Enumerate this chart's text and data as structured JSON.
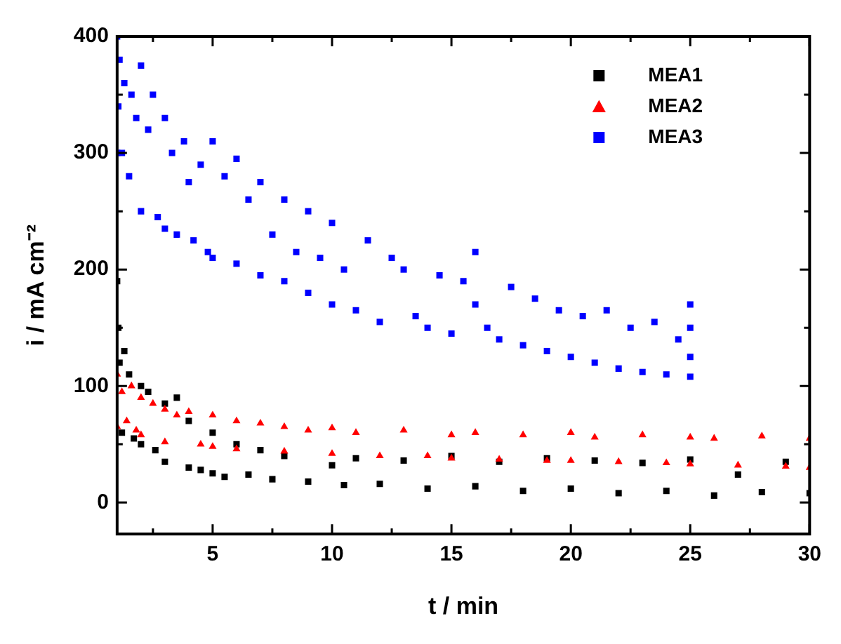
{
  "chart_data": {
    "type": "scatter",
    "xlabel": "t / min",
    "ylabel": "i / mA cm⁻²",
    "xlim": [
      1,
      30
    ],
    "xticks": [
      {
        "value": 2.5,
        "label": null
      },
      5,
      {
        "value": 7.5,
        "label": null
      },
      10,
      {
        "value": 12.5,
        "label": null
      },
      15,
      {
        "value": 17.5,
        "label": null
      },
      20,
      {
        "value": 22.5,
        "label": null
      },
      25,
      {
        "value": 27.5,
        "label": null
      },
      30
    ],
    "ylim": [
      -27,
      400
    ],
    "yticks": [
      0,
      {
        "value": 50,
        "label": null
      },
      100,
      {
        "value": 150,
        "label": null
      },
      200,
      {
        "value": 250,
        "label": null
      },
      300,
      {
        "value": 350,
        "label": null
      },
      400
    ],
    "grid": false,
    "legend": "top right",
    "series": [
      {
        "name": "MEA1",
        "color": "#000000",
        "marker": "square",
        "x": [
          1.0,
          1.05,
          1.1,
          1.2,
          1.3,
          1.5,
          1.7,
          2.0,
          2.0,
          2.3,
          2.6,
          3.0,
          3.0,
          3.5,
          4.0,
          4.0,
          4.5,
          5.0,
          5.0,
          5.5,
          6.0,
          6.5,
          7.0,
          7.5,
          8.0,
          9.0,
          10.0,
          10.5,
          11.0,
          12.0,
          13.0,
          14.0,
          15.0,
          16.0,
          17.0,
          18.0,
          19.0,
          20.0,
          21.0,
          22.0,
          23.0,
          24.0,
          25.0,
          26.0,
          27.0,
          28.0,
          29.0,
          30.0
        ],
        "values": [
          190,
          150,
          120,
          60,
          130,
          110,
          55,
          100,
          50,
          95,
          45,
          85,
          35,
          90,
          70,
          30,
          28,
          60,
          25,
          22,
          50,
          24,
          45,
          20,
          40,
          18,
          32,
          15,
          38,
          16,
          36,
          12,
          40,
          14,
          35,
          10,
          38,
          12,
          36,
          8,
          34,
          10,
          37,
          6,
          24,
          9,
          35,
          8
        ]
      },
      {
        "name": "MEA2",
        "color": "#ff0000",
        "marker": "triangle",
        "x": [
          1.0,
          1.0,
          1.2,
          1.4,
          1.6,
          1.8,
          2.0,
          2.0,
          2.5,
          3.0,
          3.0,
          3.5,
          4.0,
          4.5,
          5.0,
          5.0,
          6.0,
          6.0,
          7.0,
          8.0,
          8.0,
          9.0,
          10.0,
          10.0,
          11.0,
          12.0,
          13.0,
          14.0,
          15.0,
          15.0,
          16.0,
          17.0,
          18.0,
          19.0,
          20.0,
          20.0,
          21.0,
          22.0,
          23.0,
          24.0,
          25.0,
          25.0,
          26.0,
          27.0,
          28.0,
          29.0,
          30.0,
          30.0
        ],
        "values": [
          110,
          65,
          95,
          70,
          100,
          62,
          90,
          58,
          85,
          80,
          52,
          75,
          78,
          50,
          75,
          48,
          70,
          46,
          68,
          65,
          44,
          62,
          64,
          42,
          60,
          40,
          62,
          40,
          58,
          38,
          60,
          37,
          58,
          36,
          60,
          36,
          56,
          35,
          58,
          34,
          56,
          33,
          55,
          32,
          57,
          31,
          55,
          30
        ]
      },
      {
        "name": "MEA3",
        "color": "#0000ff",
        "marker": "square",
        "x": [
          1.0,
          1.0,
          1.05,
          1.1,
          1.2,
          1.3,
          1.5,
          1.6,
          1.8,
          2.0,
          2.0,
          2.3,
          2.5,
          2.7,
          3.0,
          3.0,
          3.3,
          3.5,
          3.8,
          4.0,
          4.2,
          4.5,
          4.8,
          5.0,
          5.0,
          5.5,
          6.0,
          6.0,
          6.5,
          7.0,
          7.0,
          7.5,
          8.0,
          8.0,
          8.5,
          9.0,
          9.0,
          9.5,
          10.0,
          10.0,
          10.5,
          11.0,
          11.5,
          12.0,
          12.5,
          13.0,
          13.5,
          14.0,
          14.5,
          15.0,
          15.5,
          16.0,
          16.0,
          16.5,
          17.0,
          17.5,
          18.0,
          18.5,
          19.0,
          19.5,
          20.0,
          20.5,
          21.0,
          21.5,
          22.0,
          22.5,
          23.0,
          23.5,
          24.0,
          24.5,
          25.0,
          25.0,
          25.0,
          25.0
        ],
        "values": [
          400,
          300,
          340,
          380,
          300,
          360,
          280,
          350,
          330,
          375,
          250,
          320,
          350,
          245,
          330,
          235,
          300,
          230,
          310,
          275,
          225,
          290,
          215,
          310,
          210,
          280,
          205,
          295,
          260,
          195,
          275,
          230,
          190,
          260,
          215,
          180,
          250,
          210,
          170,
          240,
          200,
          165,
          225,
          155,
          210,
          200,
          160,
          150,
          195,
          145,
          190,
          215,
          170,
          150,
          140,
          185,
          135,
          175,
          130,
          165,
          125,
          160,
          120,
          165,
          115,
          150,
          112,
          155,
          110,
          140,
          170,
          108,
          150,
          125
        ]
      }
    ]
  }
}
